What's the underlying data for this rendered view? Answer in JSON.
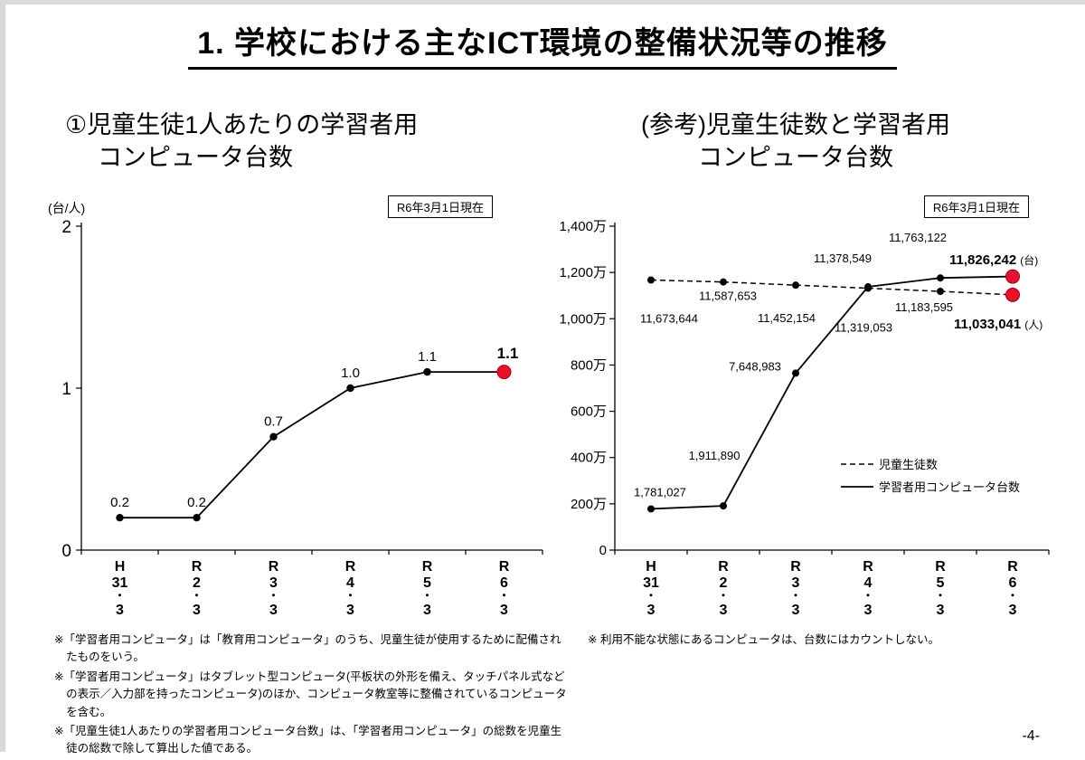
{
  "page": {
    "title": "1. 学校における主なICT環境の整備状況等の推移",
    "page_number": "-4-"
  },
  "left_panel": {
    "heading_line1": "①児童生徒1人あたりの学習者用",
    "heading_line2": "コンピュータ台数",
    "y_unit": "(台/人)",
    "date_badge": "R6年3月1日現在"
  },
  "right_panel": {
    "heading_line1": "(参考)児童生徒数と学習者用",
    "heading_line2": "コンピュータ台数",
    "date_badge": "R6年3月1日現在"
  },
  "colors": {
    "highlight": "#e8112d",
    "highlight_edge": "#a60013",
    "line": "#000000"
  },
  "chart_data": [
    {
      "type": "line",
      "title": "児童生徒1人あたりの学習者用コンピュータ台数",
      "categories": [
        "H31.3",
        "R2.3",
        "R3.3",
        "R4.3",
        "R5.3",
        "R6.3"
      ],
      "xtick_lines": [
        [
          "H",
          "31",
          "・",
          "3"
        ],
        [
          "R",
          "2",
          "・",
          "3"
        ],
        [
          "R",
          "3",
          "・",
          "3"
        ],
        [
          "R",
          "4",
          "・",
          "3"
        ],
        [
          "R",
          "5",
          "・",
          "3"
        ],
        [
          "R",
          "6",
          "・",
          "3"
        ]
      ],
      "values": [
        0.2,
        0.2,
        0.7,
        1.0,
        1.1,
        1.1
      ],
      "point_labels": [
        "0.2",
        "0.2",
        "0.7",
        "1.0",
        "1.1",
        "1.1"
      ],
      "ylabel": "(台/人)",
      "ylim": [
        0,
        2
      ],
      "yticks": [
        "0",
        "1",
        "2"
      ],
      "grid": false,
      "legend": "none",
      "highlight_last_point": true
    },
    {
      "type": "line",
      "title": "(参考)児童生徒数と学習者用コンピュータ台数",
      "categories": [
        "H31.3",
        "R2.3",
        "R3.3",
        "R4.3",
        "R5.3",
        "R6.3"
      ],
      "xtick_lines": [
        [
          "H",
          "31",
          "・",
          "3"
        ],
        [
          "R",
          "2",
          "・",
          "3"
        ],
        [
          "R",
          "3",
          "・",
          "3"
        ],
        [
          "R",
          "4",
          "・",
          "3"
        ],
        [
          "R",
          "5",
          "・",
          "3"
        ],
        [
          "R",
          "6",
          "・",
          "3"
        ]
      ],
      "ylim": [
        0,
        14000000
      ],
      "ytick_labels": [
        "0",
        "200万",
        "400万",
        "600万",
        "800万",
        "1,000万",
        "1,200万",
        "1,400万"
      ],
      "grid": false,
      "legend_position": "right-middle",
      "highlight_last_point": true,
      "series": [
        {
          "name": "児童生徒数",
          "line_style": "dashed",
          "unit": "(人)",
          "values": [
            11673644,
            11587653,
            11452154,
            11319053,
            11183595,
            11033041
          ],
          "point_labels": [
            "11,673,644",
            "11,587,653",
            "11,452,154",
            "11,319,053",
            "11,183,595",
            "11,033,041"
          ]
        },
        {
          "name": "学習者用コンピュータ台数",
          "line_style": "solid",
          "unit": "(台)",
          "values": [
            1781027,
            1911890,
            7648983,
            11378549,
            11763122,
            11826242
          ],
          "point_labels": [
            "1,781,027",
            "1,911,890",
            "7,648,983",
            "11,378,549",
            "11,763,122",
            "11,826,242"
          ]
        }
      ]
    }
  ],
  "footnotes_left": [
    "※「学習者用コンピュータ」は「教育用コンピュータ」のうち、児童生徒が使用するために配備されたものをいう。",
    "※「学習者用コンピュータ」はタブレット型コンピュータ(平板状の外形を備え、タッチパネル式などの表示／入力部を持ったコンピュータ)のほか、コンピュータ教室等に整備されているコンピュータを含む。",
    "※「児童生徒1人あたりの学習者用コンピュータ台数」は、「学習者用コンピュータ」の総数を児童生徒の総数で除して算出した値である。"
  ],
  "footnote_right": "※ 利用不能な状態にあるコンピュータは、台数にはカウントしない。"
}
